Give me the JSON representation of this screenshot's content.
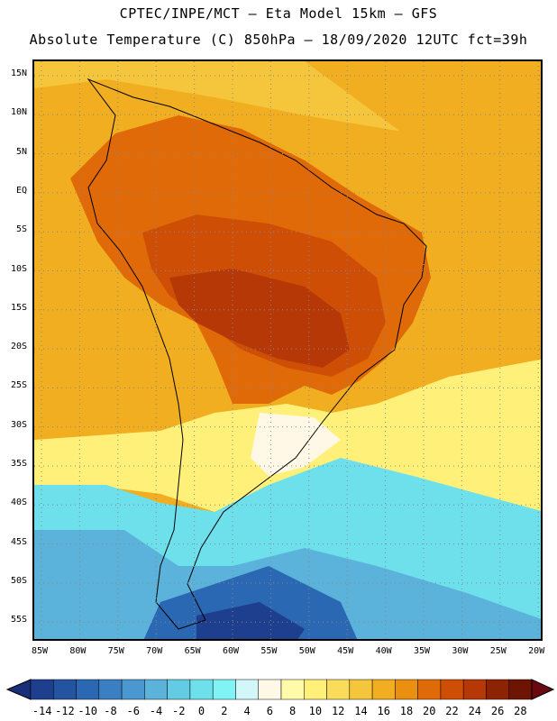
{
  "header": {
    "line1": "CPTEC/INPE/MCT –  Eta Model 15km – GFS",
    "line2": "Absolute Temperature (C) 850hPa – 18/09/2020 12UTC fct=39h"
  },
  "map": {
    "lat_ticks": [
      "15N",
      "10N",
      "5N",
      "EQ",
      "5S",
      "10S",
      "15S",
      "20S",
      "25S",
      "30S",
      "35S",
      "40S",
      "45S",
      "50S",
      "55S"
    ],
    "lon_ticks": [
      "85W",
      "80W",
      "75W",
      "70W",
      "65W",
      "60W",
      "55W",
      "50W",
      "45W",
      "40W",
      "35W",
      "30W",
      "25W",
      "20W"
    ]
  },
  "colorbar": {
    "labels": [
      "-14",
      "-12",
      "-10",
      "-8",
      "-6",
      "-4",
      "-2",
      "0",
      "2",
      "4",
      "6",
      "8",
      "10",
      "12",
      "14",
      "16",
      "18",
      "20",
      "22",
      "24",
      "26",
      "28"
    ],
    "colors": [
      "#1e3e8e",
      "#2453a0",
      "#2b68b3",
      "#3a7fc2",
      "#4a98cf",
      "#5bb3dc",
      "#64cbe4",
      "#6ee0ec",
      "#80f4f4",
      "#d2f6fa",
      "#fff8e6",
      "#fffba8",
      "#fff07a",
      "#fbdc5a",
      "#f5c53c",
      "#f0ae20",
      "#eb8f10",
      "#e06a08",
      "#cf4e06",
      "#b53806",
      "#8c2404",
      "#6e1402"
    ],
    "under_color": "#1a2f7a",
    "over_color": "#6a0a10"
  }
}
